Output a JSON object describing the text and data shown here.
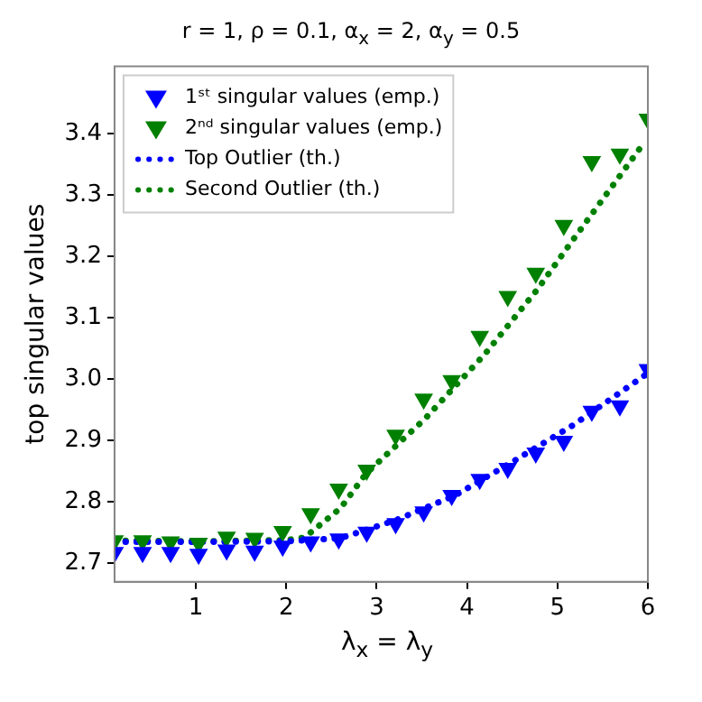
{
  "chart_data": {
    "type": "scatter",
    "title": "r = 1, ρ = 0.1, α$_{x}$ = 2, α$_{y}$ = 0.5",
    "xlabel": "λ$_{x}$ = λ$_{y}$",
    "ylabel": "top singular values",
    "xlim": [
      0.1,
      6
    ],
    "xticks": [
      1,
      2,
      3,
      4,
      5,
      6
    ],
    "ylim": [
      2.67,
      3.51
    ],
    "yticks": [
      2.7,
      2.8,
      2.9,
      {
        "value": 3.0,
        "label": "3.0"
      },
      3.1,
      3.2,
      3.3,
      3.4
    ],
    "grid": false,
    "legend": "top left",
    "series": [
      {
        "name": "1ˢᵗ singular values (emp.)",
        "marker": "triangle",
        "color": "#0000ff",
        "x": [
          0.1,
          0.41,
          0.72,
          1.03,
          1.34,
          1.65,
          1.96,
          2.27,
          2.58,
          2.89,
          3.21,
          3.52,
          3.83,
          4.14,
          4.45,
          4.76,
          5.07,
          5.38,
          5.69,
          6.0
        ],
        "values": [
          2.718,
          2.718,
          2.718,
          2.715,
          2.722,
          2.72,
          2.728,
          2.735,
          2.74,
          2.751,
          2.765,
          2.784,
          2.811,
          2.837,
          2.855,
          2.88,
          2.899,
          2.948,
          2.957,
          3.016
        ]
      },
      {
        "name": "2ⁿᵈ singular values (emp.)",
        "marker": "triangle",
        "color": "#008000",
        "x": [
          0.1,
          0.41,
          0.72,
          1.03,
          1.34,
          1.65,
          1.96,
          2.27,
          2.58,
          2.89,
          3.21,
          3.52,
          3.83,
          4.14,
          4.45,
          4.76,
          5.07,
          5.38,
          5.69,
          6.0
        ],
        "values": [
          2.737,
          2.737,
          2.735,
          2.733,
          2.743,
          2.741,
          2.752,
          2.781,
          2.821,
          2.852,
          2.909,
          2.968,
          2.998,
          3.07,
          3.135,
          3.173,
          3.251,
          3.355,
          3.367,
          3.424
        ]
      },
      {
        "name": "Top Outlier (th.)",
        "type": "line",
        "line_style": "dotted",
        "marker": "none",
        "color": "#0000ff",
        "x": [
          0.1,
          1,
          2,
          2.6,
          3.22,
          3.87,
          4.53,
          5.18,
          6.0
        ],
        "values": [
          2.735,
          2.735,
          2.736,
          2.741,
          2.771,
          2.811,
          2.868,
          2.926,
          3.01
        ]
      },
      {
        "name": "Second Outlier (th.)",
        "type": "line",
        "line_style": "dotted",
        "marker": "none",
        "color": "#008000",
        "x": [
          0.1,
          1,
          2,
          2.2,
          2.6,
          2.88,
          3.53,
          4.19,
          4.78,
          5.17,
          5.96
        ],
        "values": [
          2.737,
          2.736,
          2.738,
          2.742,
          2.79,
          2.846,
          2.935,
          3.04,
          3.147,
          3.227,
          3.386
        ]
      }
    ]
  }
}
